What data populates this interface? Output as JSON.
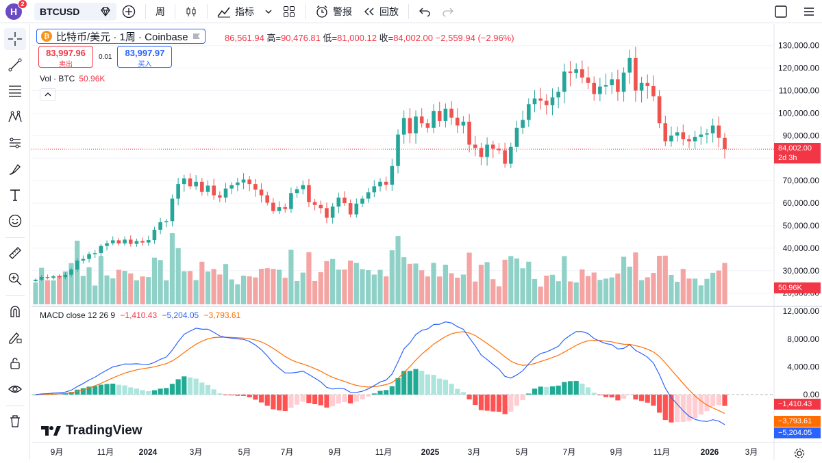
{
  "topbar": {
    "logo_letter": "H",
    "notification_count": "2",
    "symbol": "BTCUSD",
    "interval": "周",
    "indicators_label": "指标",
    "alert_label": "警报",
    "replay_label": "回放"
  },
  "legend": {
    "title": "比特币/美元 · 1周 · Coinbase",
    "coin_letter": "₿",
    "open_partial": "86,561.94",
    "high_label": "高=",
    "high": "90,476.81",
    "low_label": "低=",
    "low": "81,000.12",
    "close_label": "收=",
    "close": "84,002.00",
    "change": "−2,559.94 (−2.96%)"
  },
  "trade": {
    "bid_price": "83,997.96",
    "bid_label": "卖出",
    "spread": "0.01",
    "ask_price": "83,997.97",
    "ask_label": "买入"
  },
  "volume": {
    "label": "Vol · BTC",
    "value": "50.96K"
  },
  "macd": {
    "label": "MACD close 12 26 9",
    "hist": "−1,410.43",
    "macd": "−5,204.05",
    "signal": "−3,793.61"
  },
  "price_axis": {
    "labels": [
      "130,000.00",
      "120,000.00",
      "110,000.00",
      "100,000.00",
      "90,000.00",
      "80,000.00",
      "70,000.00",
      "60,000.00",
      "50,000.00",
      "40,000.00",
      "30,000.00",
      "20,000.00",
      "12,000.00"
    ],
    "current_price": "84,002.00",
    "countdown": "2d 3h",
    "volume_tag": "50.96K"
  },
  "macd_axis": {
    "labels": [
      "8,000.00",
      "4,000.00",
      "0.00"
    ],
    "hist_tag": "−1,410.43",
    "signal_tag": "−3,793.61",
    "macd_tag": "−5,204.05"
  },
  "time_axis": [
    "9月",
    "11月",
    "2024",
    "3月",
    "5月",
    "7月",
    "9月",
    "11月",
    "2025",
    "3月",
    "5月",
    "7月",
    "9月",
    "11月",
    "2026",
    "3月"
  ],
  "watermark": "TradingView",
  "colors": {
    "up": "#26a69a",
    "down": "#ef5350",
    "accent": "#2962ff",
    "signal": "#ff6d00"
  },
  "chart_data": {
    "type": "candlestick",
    "y_range": [
      12000,
      132000
    ],
    "closes": [
      26000,
      27200,
      26800,
      27500,
      27100,
      28200,
      30500,
      34500,
      35200,
      37400,
      37800,
      41000,
      42200,
      43500,
      42100,
      43800,
      41900,
      43200,
      42500,
      43600,
      48200,
      51500,
      52000,
      62000,
      68500,
      71000,
      67500,
      69500,
      65000,
      67800,
      63500,
      62500,
      66500,
      68000,
      69200,
      70500,
      68500,
      66000,
      63500,
      60200,
      56500,
      58200,
      57400,
      64500,
      66200,
      68000,
      60500,
      59200,
      57800,
      53500,
      58500,
      62500,
      60000,
      55000,
      59800,
      62000,
      64800,
      67500,
      69500,
      68200,
      76500,
      90500,
      97800,
      91000,
      98500,
      95500,
      93500,
      101000,
      96500,
      102000,
      98000,
      94500,
      96200,
      86000,
      84500,
      80500,
      86000,
      84200,
      83500,
      77500,
      85000,
      93500,
      97000,
      104000,
      106500,
      105500,
      103500,
      107000,
      109500,
      118500,
      117800,
      119500,
      115800,
      113500,
      108500,
      111800,
      112500,
      115000,
      109500,
      118000,
      124500,
      110000,
      113500,
      112000,
      107500,
      95500,
      87500,
      90000,
      91500,
      88500,
      87500,
      89500,
      90500,
      91000,
      94500,
      89000,
      84002
    ],
    "volume_unit": "BTC",
    "macd_zero": 0
  }
}
